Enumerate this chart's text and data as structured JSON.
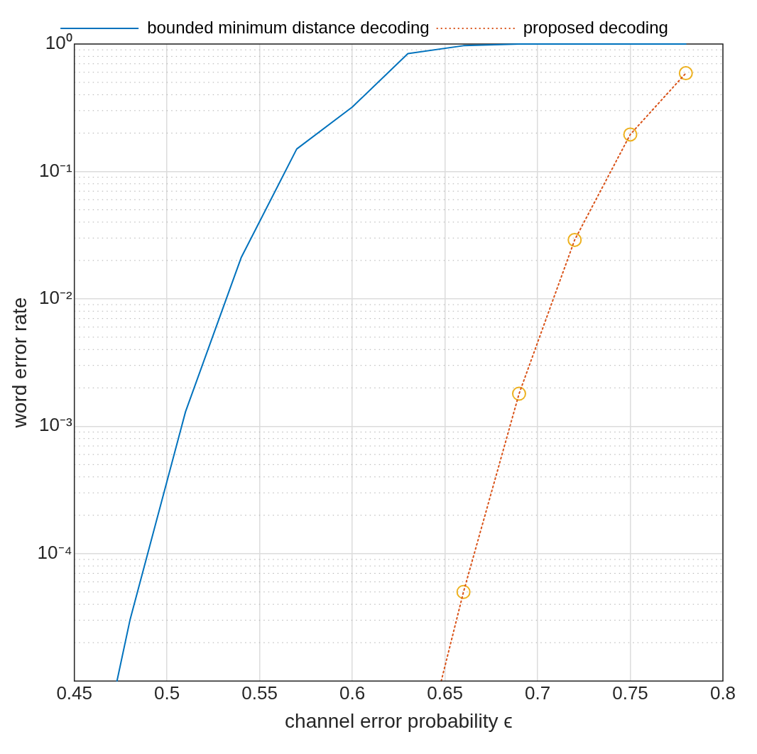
{
  "chart_data": {
    "type": "line",
    "xlabel": "channel error probability ϵ",
    "ylabel": "word error rate",
    "log": "y",
    "grid": true,
    "legend": "top",
    "xlim": [
      0.45,
      0.8
    ],
    "xticks": [
      0.45,
      0.5,
      0.55,
      0.6,
      0.65,
      0.7,
      0.75,
      0.8
    ],
    "ylim": [
      1e-05,
      1
    ],
    "yticks": [
      {
        "value": 0.0001,
        "label": "10⁻⁴"
      },
      {
        "value": 0.001,
        "label": "10⁻³"
      },
      {
        "value": 0.01,
        "label": "10⁻²"
      },
      {
        "value": 0.1,
        "label": "10⁻¹"
      },
      {
        "value": 1,
        "label": "10⁰"
      }
    ],
    "series": [
      {
        "name": "bounded minimum distance decoding",
        "color": "#0072bd",
        "marker": "none",
        "line_style": "solid",
        "x": [
          0.473,
          0.48,
          0.51,
          0.54,
          0.57,
          0.6,
          0.63,
          0.66,
          0.69,
          0.72,
          0.75,
          0.78
        ],
        "values": [
          1e-05,
          3e-05,
          0.0013,
          0.021,
          0.15,
          0.32,
          0.84,
          0.97,
          1,
          1,
          1,
          1
        ]
      },
      {
        "name": "proposed decoding",
        "color": "#d95319",
        "marker": "none",
        "line_style": "dotted",
        "x": [
          0.648,
          0.66,
          0.69,
          0.72,
          0.75,
          0.78
        ],
        "values": [
          1e-05,
          5e-05,
          0.0018,
          0.029,
          0.195,
          0.59
        ]
      },
      {
        "color": "#edb120",
        "type": "scatter",
        "marker": "circle",
        "x": [
          0.66,
          0.69,
          0.72,
          0.75,
          0.78
        ],
        "values": [
          5e-05,
          0.0018,
          0.029,
          0.195,
          0.59
        ]
      }
    ]
  }
}
